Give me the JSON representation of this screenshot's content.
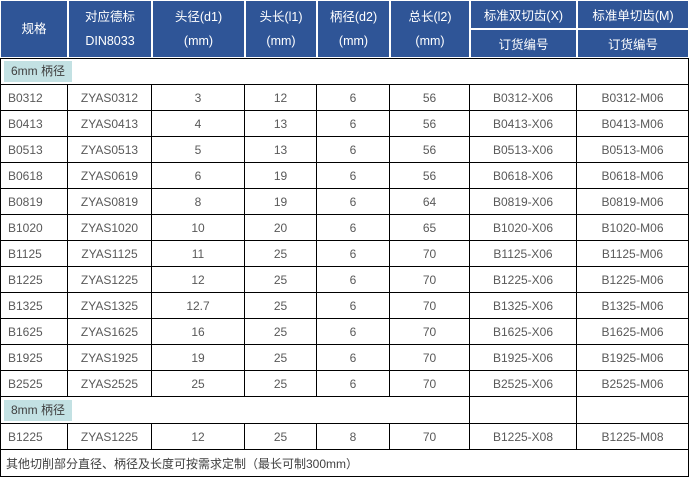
{
  "colors": {
    "header_bg": "#2f5597",
    "header_text": "#ffffff",
    "section_highlight": "#c3e1e3",
    "border": "#000000",
    "body_text": "#595959"
  },
  "table": {
    "columns": [
      {
        "line1": "规格",
        "line2": ""
      },
      {
        "line1": "对应德标",
        "line2": "DIN8033"
      },
      {
        "line1": "头径(d1)",
        "line2": "(mm)"
      },
      {
        "line1": "头长(l1)",
        "line2": "(mm)"
      },
      {
        "line1": "柄径(d2)",
        "line2": "(mm)"
      },
      {
        "line1": "总长(l2)",
        "line2": "(mm)"
      },
      {
        "line1": "标准双切齿(X)",
        "line2": "订货编号"
      },
      {
        "line1": "标准单切齿(M)",
        "line2": "订货编号"
      }
    ],
    "sections": [
      {
        "label": "6mm 柄径",
        "label_span": 8,
        "rows": [
          [
            "B0312",
            "ZYAS0312",
            "3",
            "12",
            "6",
            "56",
            "B0312-X06",
            "B0312-M06"
          ],
          [
            "B0413",
            "ZYAS0413",
            "4",
            "13",
            "6",
            "56",
            "B0413-X06",
            "B0413-M06"
          ],
          [
            "B0513",
            "ZYAS0513",
            "5",
            "13",
            "6",
            "56",
            "B0513-X06",
            "B0513-M06"
          ],
          [
            "B0618",
            "ZYAS0619",
            "6",
            "19",
            "6",
            "56",
            "B0618-X06",
            "B0618-M06"
          ],
          [
            "B0819",
            "ZYAS0819",
            "8",
            "19",
            "6",
            "64",
            "B0819-X06",
            "B0819-M06"
          ],
          [
            "B1020",
            "ZYAS1020",
            "10",
            "20",
            "6",
            "65",
            "B1020-X06",
            "B1020-M06"
          ],
          [
            "B1125",
            "ZYAS1125",
            "11",
            "25",
            "6",
            "70",
            "B1125-X06",
            "B1125-M06"
          ],
          [
            "B1225",
            "ZYAS1225",
            "12",
            "25",
            "6",
            "70",
            "B1225-X06",
            "B1225-M06"
          ],
          [
            "B1325",
            "ZYAS1325",
            "12.7",
            "25",
            "6",
            "70",
            "B1325-X06",
            "B1325-M06"
          ],
          [
            "B1625",
            "ZYAS1625",
            "16",
            "25",
            "6",
            "70",
            "B1625-X06",
            "B1625-M06"
          ],
          [
            "B1925",
            "ZYAS1925",
            "19",
            "25",
            "6",
            "70",
            "B1925-X06",
            "B1925-M06"
          ],
          [
            "B2525",
            "ZYAS2525",
            "25",
            "25",
            "6",
            "70",
            "B2525-X06",
            "B2525-M06"
          ]
        ]
      },
      {
        "label": "8mm 柄径",
        "label_span": 6,
        "rows": [
          [
            "B1225",
            "ZYAS1225",
            "12",
            "25",
            "8",
            "70",
            "B1225-X08",
            "B1225-M08"
          ]
        ]
      }
    ],
    "footer_note": "其他切削部分直径、柄径及长度可按需求定制（最长可制300mm）"
  }
}
